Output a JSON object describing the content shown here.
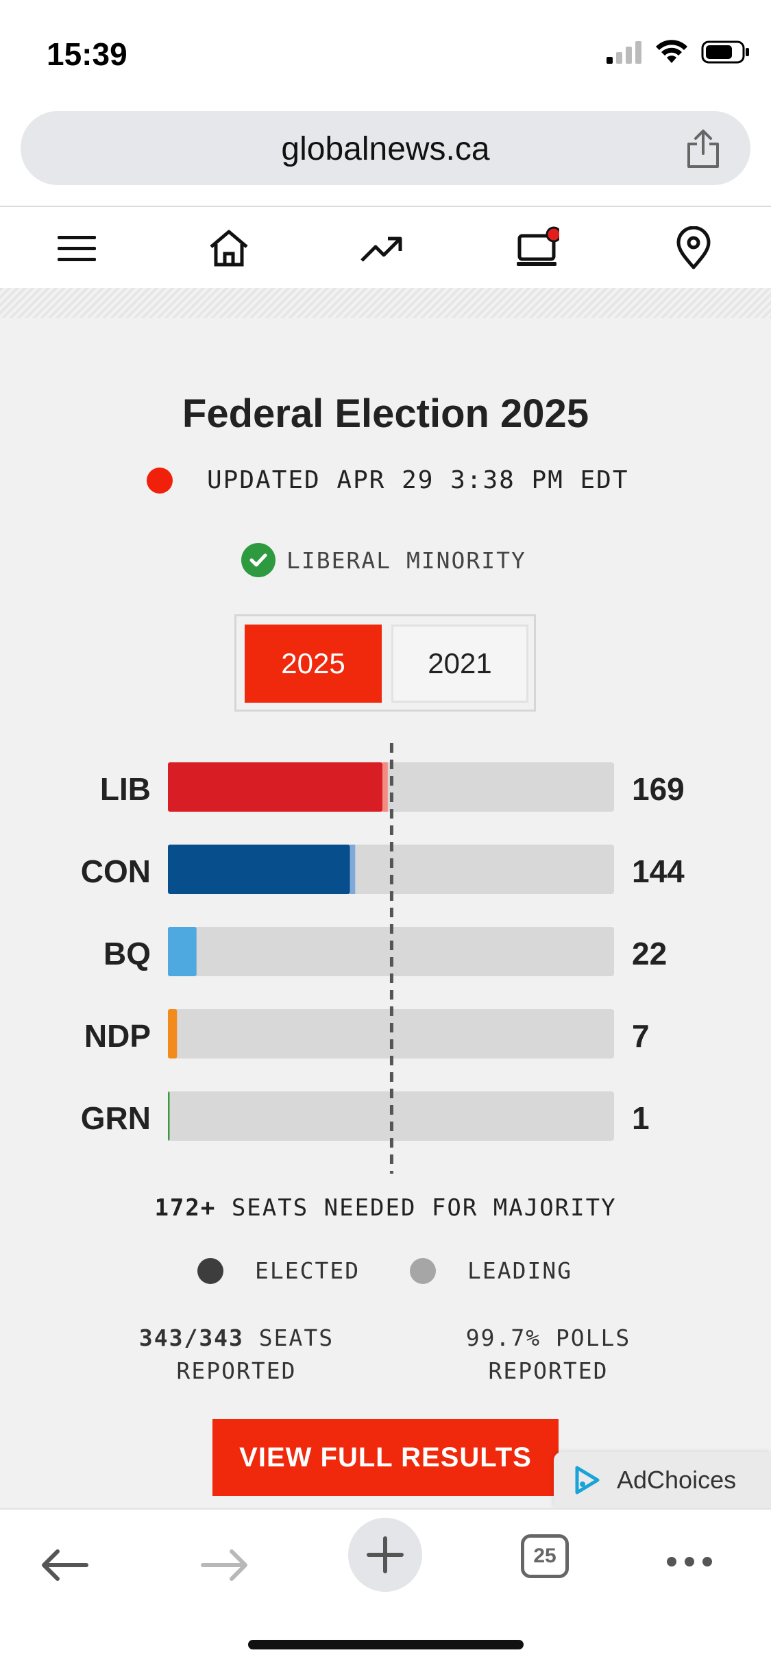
{
  "status_bar": {
    "time": "15:39"
  },
  "browser": {
    "url": "globalnews.ca",
    "tab_count": "25"
  },
  "site_nav": {
    "items": [
      "menu",
      "home",
      "trending",
      "watch",
      "local"
    ]
  },
  "election": {
    "title": "Federal Election 2025",
    "updated": "UPDATED APR 29 3:38 PM EDT",
    "result_status": "LIBERAL MINORITY",
    "year_tabs": [
      "2025",
      "2021"
    ],
    "active_year": "2025",
    "majority_number": "172+",
    "majority_text": "SEATS NEEDED FOR MAJORITY",
    "legend": {
      "elected": "ELECTED",
      "leading": "LEADING"
    },
    "seats_reported_value": "343/343",
    "seats_reported_label": "SEATS",
    "seats_reported_label2": "REPORTED",
    "polls_reported_line1": "99.7% POLLS",
    "polls_reported_line2": "REPORTED",
    "cta_label": "VIEW FULL RESULTS"
  },
  "ad": {
    "label": "AdChoices"
  },
  "colors": {
    "accent": "#f0280c",
    "lib": "#d81e24",
    "con": "#064e8c",
    "bq": "#4ea9e0",
    "ndp": "#f28a1c",
    "grn": "#3a9a3a",
    "track": "#d9d8d8"
  },
  "chart_data": {
    "type": "bar",
    "orientation": "horizontal",
    "categories": [
      "LIB",
      "CON",
      "BQ",
      "NDP",
      "GRN"
    ],
    "values": [
      169,
      144,
      22,
      7,
      1
    ],
    "series": [
      {
        "name": "ELECTED",
        "values": [
          165,
          140,
          22,
          7,
          1
        ]
      },
      {
        "name": "LEADING",
        "values": [
          4,
          4,
          0,
          0,
          0
        ]
      }
    ],
    "value_labels": [
      "169",
      "144",
      "22",
      "7",
      "1"
    ],
    "xlim": [
      0,
      343
    ],
    "majority_line": 172
  }
}
